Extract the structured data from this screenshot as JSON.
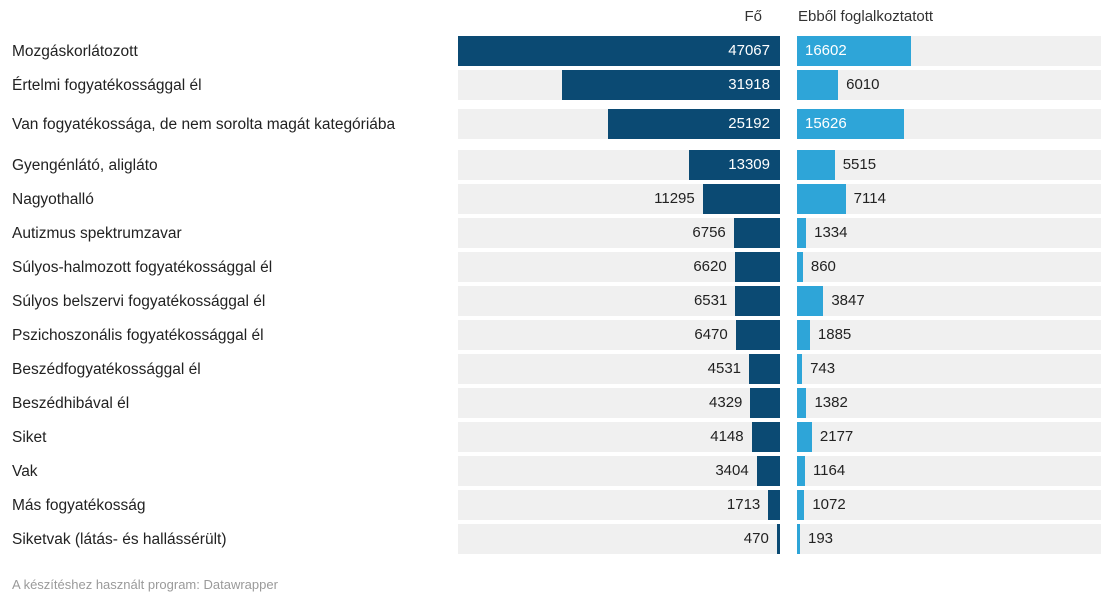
{
  "chart_data": {
    "type": "bar",
    "series": [
      {
        "name": "Fő",
        "values": [
          47067,
          31918,
          25192,
          13309,
          11295,
          6756,
          6620,
          6531,
          6470,
          4531,
          4329,
          4148,
          3404,
          1713,
          470
        ]
      },
      {
        "name": "Ebből foglalkoztatott",
        "values": [
          16602,
          6010,
          15626,
          5515,
          7114,
          1334,
          860,
          3847,
          1885,
          743,
          1382,
          2177,
          1164,
          1072,
          193
        ]
      }
    ],
    "categories": [
      "Mozgáskorlátozott",
      "Értelmi fogyatékossággal él",
      "Van fogyatékossága, de nem sorolta magát kategóriába",
      "Gyengénlátó, aligláto",
      "Nagyothalló",
      "Autizmus spektrumzavar",
      "Súlyos-halmozott fogyatékossággal él",
      "Súlyos belszervi fogyatékossággal él",
      "Pszichoszonális fogyatékossággal él",
      "Beszédfogyatékossággal él",
      "Beszédhibával él",
      "Siket",
      "Vak",
      "Más fogyatékosság",
      "Siketvak (látás- és hallássérült)"
    ],
    "headers": {
      "left": "Fő",
      "right": "Ebből foglalkoztatott"
    },
    "colors": {
      "left": "#0b4a73",
      "right": "#2ea5d8",
      "row_bg": "#f0f0f0"
    }
  },
  "footer": "A készítéshez használt program: Datawrapper"
}
